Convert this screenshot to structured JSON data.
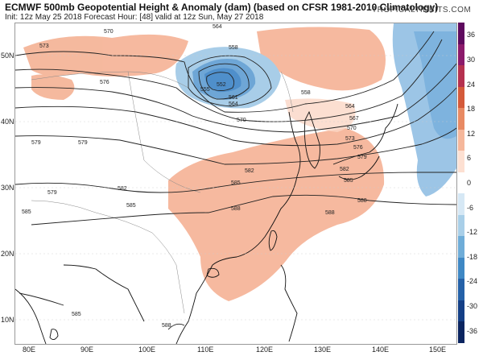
{
  "header": {
    "title": "ECMWF 500mb Geopotential Height & Anomaly (dam) (based on CFSR 1981-2010 Climatology)",
    "subtitle": "Init: 12z May 25 2018   Forecast Hour: [48]   valid at 12z Sun, May 27 2018",
    "brand": "TROPICALTIDBITS.COM"
  },
  "axes": {
    "lat_labels": [
      "50N",
      "40N",
      "30N",
      "20N",
      "10N"
    ],
    "lon_labels": [
      "80E",
      "90E",
      "100E",
      "110E",
      "120E",
      "130E",
      "140E",
      "150E"
    ]
  },
  "colorbar": {
    "labels": [
      "36",
      "30",
      "24",
      "18",
      "12",
      "6",
      "0",
      "-6",
      "-12",
      "-18",
      "-24",
      "-30",
      "-36"
    ],
    "colors": [
      "#5e0a5e",
      "#8b1a6b",
      "#b5314f",
      "#d45a3a",
      "#e88a63",
      "#f5b79b",
      "#fde0d2",
      "#ffffff",
      "#d6e8f5",
      "#a9cfe8",
      "#6fadd8",
      "#3f88c4",
      "#2561a8",
      "#143f86",
      "#0b2560"
    ]
  },
  "contour_labels": {
    "c552": "552",
    "c555": "555",
    "c558": "558",
    "c561": "561",
    "c564": "564",
    "c567": "567",
    "c570": "570",
    "c573": "573",
    "c576": "576",
    "c579": "579",
    "c582": "582",
    "c585": "585",
    "c588": "588"
  },
  "colors": {
    "positive_anomaly": "#f4a98a",
    "negative_anomaly": "#7fb3dc",
    "contour": "#222222",
    "coastline": "#111111"
  }
}
